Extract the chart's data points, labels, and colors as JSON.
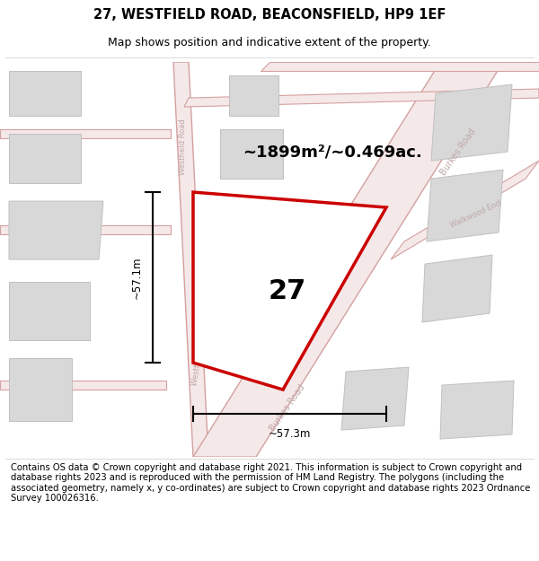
{
  "title": "27, WESTFIELD ROAD, BEACONSFIELD, HP9 1EF",
  "subtitle": "Map shows position and indicative extent of the property.",
  "footer": "Contains OS data © Crown copyright and database right 2021. This information is subject to Crown copyright and database rights 2023 and is reproduced with the permission of HM Land Registry. The polygons (including the associated geometry, namely x, y co-ordinates) are subject to Crown copyright and database rights 2023 Ordnance Survey 100026316.",
  "area_label": "~1899m²/~0.469ac.",
  "property_number": "27",
  "dim_vertical": "~57.1m",
  "dim_horizontal": "~57.3m",
  "bg_color": "#ffffff",
  "road_color": "#f5e8e8",
  "road_border_color": "#d4a0a0",
  "building_color": "#d8d8d8",
  "building_border": "#c0c0c0",
  "property_fill": "#ffffff",
  "property_border": "#cc0000",
  "road_label_color": "#c0a8a8",
  "text_color": "#000000",
  "title_fontsize": 10.5,
  "subtitle_fontsize": 9,
  "footer_fontsize": 7.2
}
